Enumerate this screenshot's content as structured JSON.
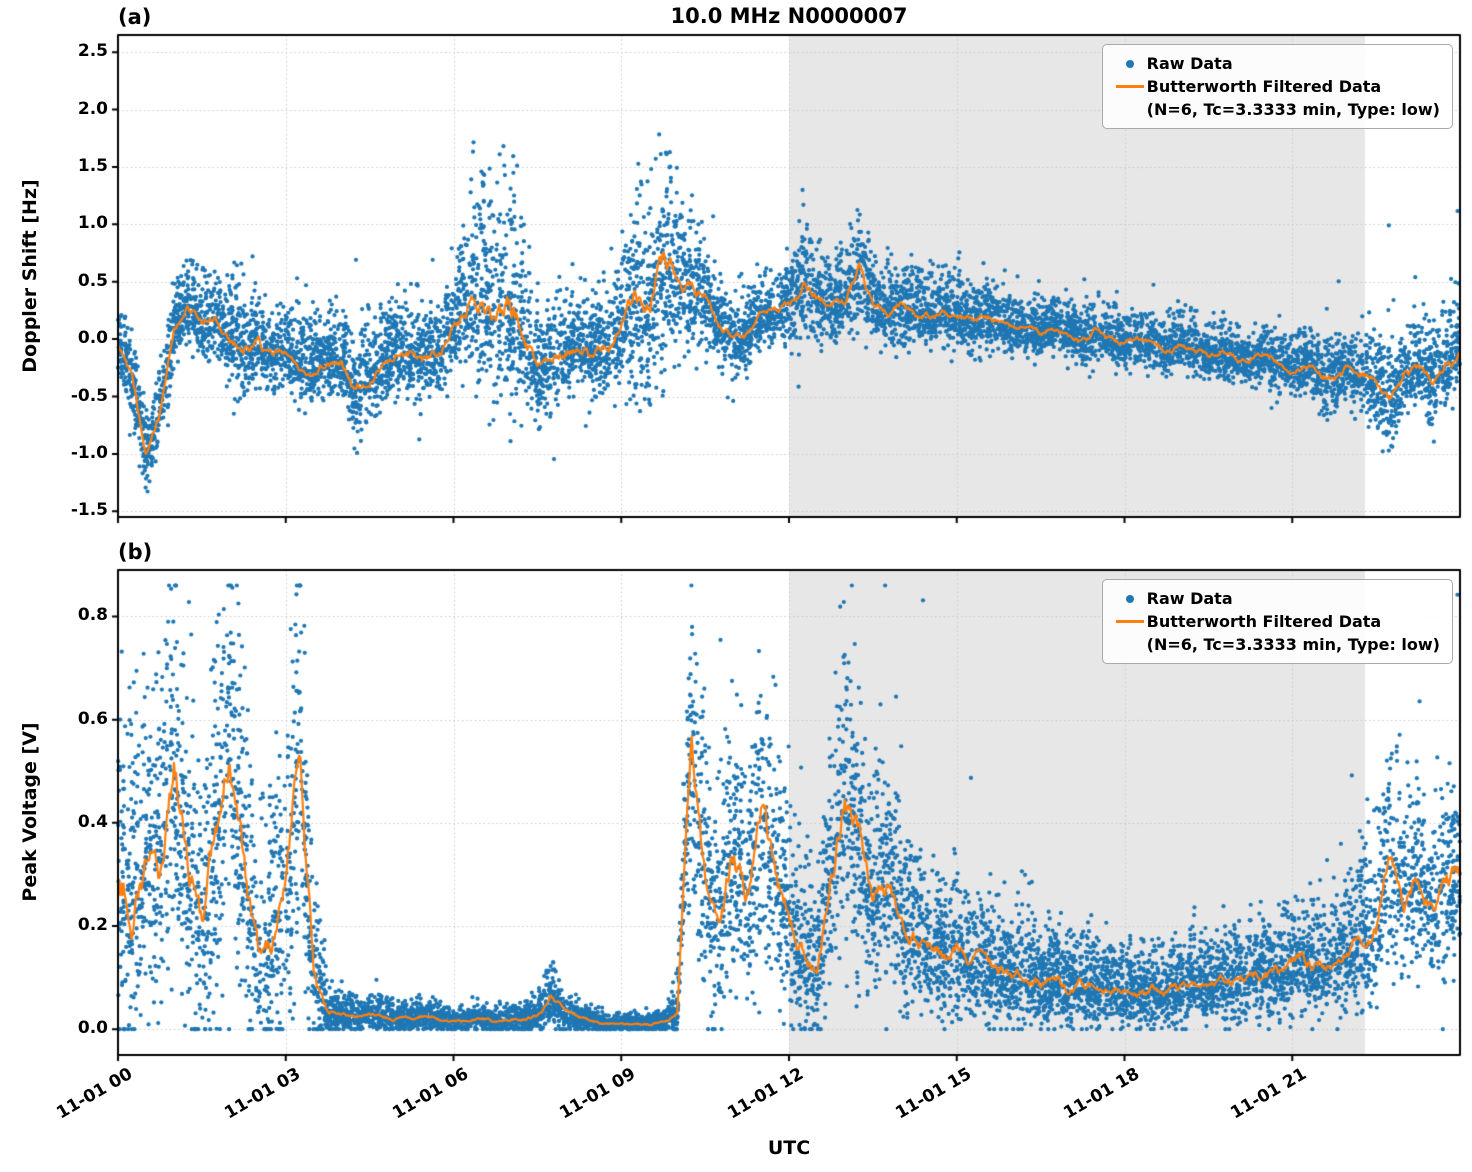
{
  "figure": {
    "title": "10.0 MHz N0000007",
    "panel_a_label": "(a)",
    "panel_b_label": "(b)",
    "xlabel": "UTC",
    "colors": {
      "raw": "#1f77b4",
      "filtered": "#ff7f0e",
      "shade": "#e7e7e7",
      "grid": "#c9c9c9",
      "spine": "#000000"
    }
  },
  "legend": {
    "raw_label": "Raw Data",
    "filtered_label": "Butterworth Filtered Data",
    "filtered_sublabel": "(N=6, Tc=3.3333 min, Type: low)"
  },
  "chart_data": [
    {
      "type": "scatter",
      "panel": "a",
      "title": "10.0 MHz N0000007",
      "ylabel": "Doppler Shift [Hz]",
      "xlabel": "UTC",
      "x_units": "hours after 11-01 00 UTC",
      "xlim": [
        0,
        24
      ],
      "ylim": [
        -1.55,
        2.65
      ],
      "xticks": {
        "positions": [
          0,
          3,
          6,
          9,
          12,
          15,
          18,
          21
        ],
        "labels": [
          "11-01 00",
          "11-01 03",
          "11-01 06",
          "11-01 09",
          "11-01 12",
          "11-01 15",
          "11-01 18",
          "11-01 21"
        ]
      },
      "yticks": {
        "values": [
          2.5,
          2.0,
          1.5,
          1.0,
          0.5,
          0.0,
          -0.5,
          -1.0,
          -1.5
        ],
        "labels": [
          "2.5",
          "2.0",
          "1.5",
          "1.0",
          "0.5",
          "0.0",
          "-0.5",
          "-1.0",
          "-1.5"
        ]
      },
      "shaded_region": [
        12.0,
        22.3
      ],
      "grid": "dotted",
      "legend_position": "upper right",
      "series": {
        "t_step": 0.25,
        "filtered_mean": [
          -0.05,
          -0.35,
          -1.0,
          -0.65,
          0.1,
          0.3,
          0.15,
          0.2,
          0.0,
          -0.1,
          -0.05,
          -0.15,
          -0.1,
          -0.2,
          -0.25,
          -0.15,
          -0.2,
          -0.45,
          -0.3,
          -0.2,
          -0.1,
          -0.15,
          -0.2,
          -0.1,
          0.1,
          0.3,
          0.45,
          0.2,
          0.3,
          0.1,
          -0.3,
          -0.2,
          -0.1,
          -0.05,
          -0.15,
          -0.05,
          0.1,
          0.35,
          0.2,
          0.65,
          0.5,
          0.4,
          0.35,
          0.1,
          0.0,
          0.05,
          0.2,
          0.25,
          0.3,
          0.5,
          0.35,
          0.3,
          0.35,
          0.6,
          0.3,
          0.25,
          0.3,
          0.25,
          0.2,
          0.25,
          0.2,
          0.15,
          0.2,
          0.15,
          0.1,
          0.1,
          0.05,
          0.1,
          0.05,
          0.0,
          0.05,
          0.0,
          -0.05,
          0.0,
          -0.05,
          -0.1,
          -0.05,
          -0.1,
          -0.15,
          -0.1,
          -0.15,
          -0.2,
          -0.15,
          -0.2,
          -0.25,
          -0.2,
          -0.3,
          -0.35,
          -0.25,
          -0.3,
          -0.4,
          -0.55,
          -0.3,
          -0.25,
          -0.4,
          -0.2,
          -0.1
        ],
        "raw_spread": [
          0.25,
          0.3,
          0.3,
          0.35,
          0.3,
          0.25,
          0.3,
          0.3,
          0.35,
          0.45,
          0.35,
          0.35,
          0.3,
          0.35,
          0.35,
          0.3,
          0.35,
          0.4,
          0.35,
          0.35,
          0.35,
          0.35,
          0.4,
          0.35,
          0.4,
          0.6,
          0.9,
          0.8,
          0.95,
          0.7,
          0.4,
          0.45,
          0.35,
          0.35,
          0.4,
          0.4,
          0.5,
          0.95,
          0.7,
          0.85,
          0.6,
          0.5,
          0.4,
          0.3,
          0.25,
          0.25,
          0.25,
          0.25,
          0.3,
          0.5,
          0.35,
          0.3,
          0.3,
          0.45,
          0.3,
          0.3,
          0.3,
          0.3,
          0.25,
          0.3,
          0.25,
          0.25,
          0.25,
          0.2,
          0.25,
          0.2,
          0.2,
          0.2,
          0.2,
          0.2,
          0.3,
          0.2,
          0.2,
          0.2,
          0.2,
          0.2,
          0.2,
          0.2,
          0.2,
          0.2,
          0.2,
          0.2,
          0.2,
          0.25,
          0.25,
          0.25,
          0.3,
          0.3,
          0.25,
          0.3,
          0.35,
          0.45,
          0.3,
          0.3,
          0.35,
          0.35,
          0.4
        ]
      }
    },
    {
      "type": "scatter",
      "panel": "b",
      "ylabel": "Peak Voltage [V]",
      "xlabel": "UTC",
      "x_units": "hours after 11-01 00 UTC",
      "xlim": [
        0,
        24
      ],
      "ylim": [
        -0.05,
        0.89
      ],
      "xticks": {
        "positions": [
          0,
          3,
          6,
          9,
          12,
          15,
          18,
          21
        ],
        "labels": [
          "11-01 00",
          "11-01 03",
          "11-01 06",
          "11-01 09",
          "11-01 12",
          "11-01 15",
          "11-01 18",
          "11-01 21"
        ]
      },
      "yticks": {
        "values": [
          0.8,
          0.6,
          0.4,
          0.2,
          0.0
        ],
        "labels": [
          "0.8",
          "0.6",
          "0.4",
          "0.2",
          "0.0"
        ]
      },
      "shaded_region": [
        12.0,
        22.3
      ],
      "grid": "dotted",
      "legend_position": "upper right",
      "series": {
        "t_step": 0.25,
        "filtered_mean": [
          0.3,
          0.25,
          0.35,
          0.3,
          0.5,
          0.3,
          0.2,
          0.35,
          0.55,
          0.3,
          0.15,
          0.2,
          0.25,
          0.55,
          0.1,
          0.03,
          0.03,
          0.025,
          0.03,
          0.025,
          0.02,
          0.02,
          0.025,
          0.02,
          0.015,
          0.015,
          0.02,
          0.015,
          0.02,
          0.02,
          0.025,
          0.06,
          0.03,
          0.02,
          0.015,
          0.01,
          0.01,
          0.01,
          0.01,
          0.015,
          0.03,
          0.55,
          0.3,
          0.2,
          0.35,
          0.25,
          0.4,
          0.3,
          0.2,
          0.15,
          0.1,
          0.3,
          0.45,
          0.35,
          0.25,
          0.3,
          0.22,
          0.18,
          0.16,
          0.14,
          0.15,
          0.12,
          0.13,
          0.11,
          0.1,
          0.12,
          0.09,
          0.1,
          0.08,
          0.09,
          0.08,
          0.07,
          0.08,
          0.07,
          0.08,
          0.07,
          0.08,
          0.09,
          0.08,
          0.1,
          0.09,
          0.1,
          0.11,
          0.1,
          0.12,
          0.13,
          0.12,
          0.14,
          0.15,
          0.18,
          0.2,
          0.35,
          0.25,
          0.3,
          0.22,
          0.28,
          0.3
        ],
        "raw_spread": [
          0.28,
          0.28,
          0.3,
          0.28,
          0.3,
          0.28,
          0.25,
          0.3,
          0.3,
          0.28,
          0.22,
          0.25,
          0.28,
          0.3,
          0.15,
          0.04,
          0.03,
          0.03,
          0.03,
          0.03,
          0.025,
          0.025,
          0.03,
          0.025,
          0.02,
          0.02,
          0.025,
          0.02,
          0.025,
          0.025,
          0.03,
          0.05,
          0.035,
          0.025,
          0.02,
          0.015,
          0.015,
          0.015,
          0.015,
          0.02,
          0.04,
          0.25,
          0.22,
          0.18,
          0.24,
          0.2,
          0.26,
          0.22,
          0.18,
          0.14,
          0.12,
          0.22,
          0.26,
          0.24,
          0.18,
          0.2,
          0.16,
          0.14,
          0.13,
          0.12,
          0.12,
          0.1,
          0.1,
          0.09,
          0.09,
          0.1,
          0.08,
          0.09,
          0.08,
          0.08,
          0.07,
          0.07,
          0.07,
          0.07,
          0.07,
          0.07,
          0.07,
          0.08,
          0.07,
          0.08,
          0.08,
          0.08,
          0.09,
          0.09,
          0.09,
          0.1,
          0.1,
          0.11,
          0.11,
          0.13,
          0.14,
          0.2,
          0.15,
          0.16,
          0.14,
          0.16,
          0.16
        ]
      }
    }
  ]
}
